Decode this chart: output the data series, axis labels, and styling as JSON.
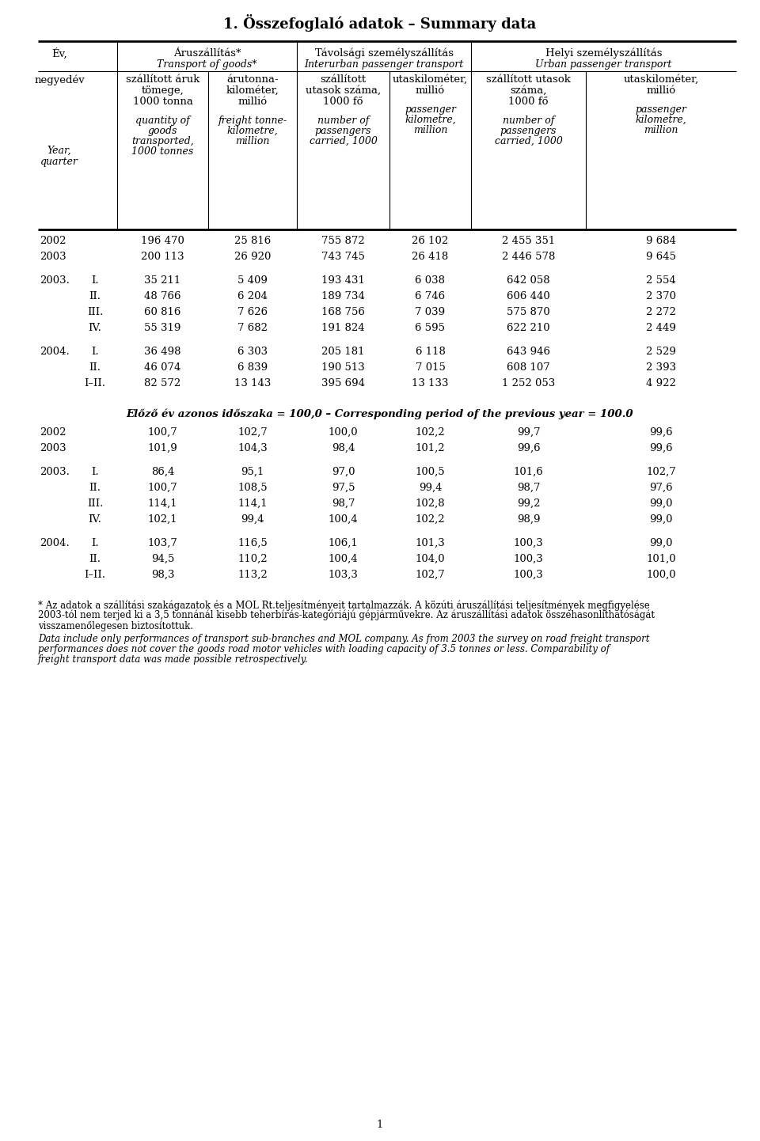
{
  "title": "1. Összefoglaló adatok – Summary data",
  "page_num": "1",
  "group1_hun": "Áruszállítás*",
  "group1_eng": "Transport of goods*",
  "group2_hun": "Távolsági személyszállítás",
  "group2_eng": "Interurban passenger transport",
  "group3_hun": "Helyi személyszállítás",
  "group3_eng": "Urban passenger transport",
  "ev_hun": "Év,",
  "negyedev_hun": "negyedév",
  "year_eng": "Year,",
  "quarter_eng": "quarter",
  "c1_hun": [
    "szállított áruk",
    "tömege,",
    "1000 tonna"
  ],
  "c1_eng": [
    "quantity of",
    "goods",
    "transported,",
    "1000 tonnes"
  ],
  "c2_hun": [
    "árutonna-",
    "kilométer,",
    "millió"
  ],
  "c2_eng": [
    "freight tonne-",
    "kilometre,",
    "million"
  ],
  "c3_hun": [
    "szállított",
    "utasok száma,",
    "1000 fő"
  ],
  "c3_eng": [
    "number of",
    "passengers",
    "carried, 1000"
  ],
  "c4_hun": [
    "utaskilométer,",
    "millió"
  ],
  "c4_eng": [
    "passenger",
    "kilometre,",
    "million"
  ],
  "c5_hun": [
    "szállított utasok",
    "száma,",
    "1000 fő"
  ],
  "c5_eng": [
    "number of",
    "passengers",
    "carried, 1000"
  ],
  "c6_hun": [
    "utaskilométer,",
    "millió"
  ],
  "c6_eng": [
    "passenger",
    "kilometre,",
    "million"
  ],
  "data_rows": [
    {
      "year": "2002",
      "quarter": "",
      "c1": "196 470",
      "c2": "25 816",
      "c3": "755 872",
      "c4": "26 102",
      "c5": "2 455 351",
      "c6": "9 684"
    },
    {
      "year": "2003",
      "quarter": "",
      "c1": "200 113",
      "c2": "26 920",
      "c3": "743 745",
      "c4": "26 418",
      "c5": "2 446 578",
      "c6": "9 645"
    },
    {
      "year": "",
      "quarter": "",
      "c1": "",
      "c2": "",
      "c3": "",
      "c4": "",
      "c5": "",
      "c6": ""
    },
    {
      "year": "2003.",
      "quarter": "I.",
      "c1": "35 211",
      "c2": "5 409",
      "c3": "193 431",
      "c4": "6 038",
      "c5": "642 058",
      "c6": "2 554"
    },
    {
      "year": "",
      "quarter": "II.",
      "c1": "48 766",
      "c2": "6 204",
      "c3": "189 734",
      "c4": "6 746",
      "c5": "606 440",
      "c6": "2 370"
    },
    {
      "year": "",
      "quarter": "III.",
      "c1": "60 816",
      "c2": "7 626",
      "c3": "168 756",
      "c4": "7 039",
      "c5": "575 870",
      "c6": "2 272"
    },
    {
      "year": "",
      "quarter": "IV.",
      "c1": "55 319",
      "c2": "7 682",
      "c3": "191 824",
      "c4": "6 595",
      "c5": "622 210",
      "c6": "2 449"
    },
    {
      "year": "",
      "quarter": "",
      "c1": "",
      "c2": "",
      "c3": "",
      "c4": "",
      "c5": "",
      "c6": ""
    },
    {
      "year": "2004.",
      "quarter": "I.",
      "c1": "36 498",
      "c2": "6 303",
      "c3": "205 181",
      "c4": "6 118",
      "c5": "643 946",
      "c6": "2 529"
    },
    {
      "year": "",
      "quarter": "II.",
      "c1": "46 074",
      "c2": "6 839",
      "c3": "190 513",
      "c4": "7 015",
      "c5": "608 107",
      "c6": "2 393"
    },
    {
      "year": "",
      "quarter": "I–II.",
      "c1": "82 572",
      "c2": "13 143",
      "c3": "395 694",
      "c4": "13 133",
      "c5": "1 252 053",
      "c6": "4 922"
    }
  ],
  "separator_label_hun": "Előző év azonos időszaka = 100,0",
  "separator_label_eng": "Corresponding period of the previous year = 100.0",
  "pct_rows": [
    {
      "year": "2002",
      "quarter": "",
      "c1": "100,7",
      "c2": "102,7",
      "c3": "100,0",
      "c4": "102,2",
      "c5": "99,7",
      "c6": "99,6"
    },
    {
      "year": "2003",
      "quarter": "",
      "c1": "101,9",
      "c2": "104,3",
      "c3": "98,4",
      "c4": "101,2",
      "c5": "99,6",
      "c6": "99,6"
    },
    {
      "year": "",
      "quarter": "",
      "c1": "",
      "c2": "",
      "c3": "",
      "c4": "",
      "c5": "",
      "c6": ""
    },
    {
      "year": "2003.",
      "quarter": "I.",
      "c1": "86,4",
      "c2": "95,1",
      "c3": "97,0",
      "c4": "100,5",
      "c5": "101,6",
      "c6": "102,7"
    },
    {
      "year": "",
      "quarter": "II.",
      "c1": "100,7",
      "c2": "108,5",
      "c3": "97,5",
      "c4": "99,4",
      "c5": "98,7",
      "c6": "97,6"
    },
    {
      "year": "",
      "quarter": "III.",
      "c1": "114,1",
      "c2": "114,1",
      "c3": "98,7",
      "c4": "102,8",
      "c5": "99,2",
      "c6": "99,0"
    },
    {
      "year": "",
      "quarter": "IV.",
      "c1": "102,1",
      "c2": "99,4",
      "c3": "100,4",
      "c4": "102,2",
      "c5": "98,9",
      "c6": "99,0"
    },
    {
      "year": "",
      "quarter": "",
      "c1": "",
      "c2": "",
      "c3": "",
      "c4": "",
      "c5": "",
      "c6": ""
    },
    {
      "year": "2004.",
      "quarter": "I.",
      "c1": "103,7",
      "c2": "116,5",
      "c3": "106,1",
      "c4": "101,3",
      "c5": "100,3",
      "c6": "99,0"
    },
    {
      "year": "",
      "quarter": "II.",
      "c1": "94,5",
      "c2": "110,2",
      "c3": "100,4",
      "c4": "104,0",
      "c5": "100,3",
      "c6": "101,0"
    },
    {
      "year": "",
      "quarter": "I–II.",
      "c1": "98,3",
      "c2": "113,2",
      "c3": "103,3",
      "c4": "102,7",
      "c5": "100,3",
      "c6": "100,0"
    }
  ],
  "footnote_hun_lines": [
    "* Az adatok a szállítási szakágazatok és a MOL Rt.teljesítményeit tartalmazzák. A közúti áruszállítási teljesítmények megfigyelése",
    "2003-tól nem terjed ki a 3,5 tonnánál kisebb teherbírás-kategóriájú gépjárművekre. Az áruszállítási adatok összehasonlíthatóságát",
    "visszamenőlegesen biztosítottuk."
  ],
  "footnote_eng_lines": [
    "Data include only performances of transport sub-branches and MOL company. As from 2003 the survey on road freight transport",
    "performances does not cover the goods road motor vehicles with loading capacity of 3.5 tonnes or less. Comparability of",
    "freight transport data was made possible retrospectively."
  ]
}
